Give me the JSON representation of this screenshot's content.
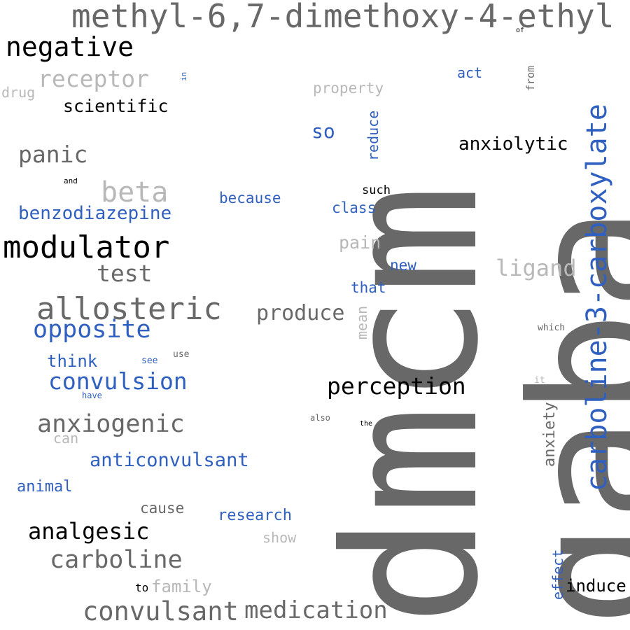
{
  "colors": {
    "dark_gray": "#686868",
    "black": "#000000",
    "light_gray": "#b8b8b8",
    "blue": "#3060bf",
    "background": "#ffffff"
  },
  "words": {
    "dmcm": "dmcm",
    "gaba": "gaba",
    "carboxylate": "carboline-3-carboxylate",
    "methyl": "methyl-6,7-dimethoxy-4-ethyl",
    "negative": "negative",
    "modulator": "modulator",
    "allosteric": "allosteric",
    "receptor": "receptor",
    "scientific": "scientific",
    "panic": "panic",
    "beta": "beta",
    "benzodiazepine": "benzodiazepine",
    "test": "test",
    "opposite": "opposite",
    "think": "think",
    "convulsion": "convulsion",
    "anxiogenic": "anxiogenic",
    "can": "can",
    "anticonvulsant": "anticonvulsant",
    "animal": "animal",
    "cause": "cause",
    "analgesic": "analgesic",
    "research": "research",
    "show": "show",
    "carboline": "carboline",
    "to": "to",
    "family": "family",
    "convulsant": "convulsant",
    "medication": "medication",
    "drug": "drug",
    "in": "in",
    "and": "and",
    "property": "property",
    "so": "so",
    "reduce": "reduce",
    "act": "act",
    "from": "from",
    "of": "of",
    "anxiolytic": "anxiolytic",
    "such": "such",
    "class": "class",
    "because": "because",
    "pain": "pain",
    "new": "new",
    "ligand": "ligand",
    "that": "that",
    "produce": "produce",
    "mean": "mean",
    "which": "which",
    "perception": "perception",
    "see": "see",
    "use": "use",
    "have": "have",
    "it": "it",
    "anxiety": "anxiety",
    "also": "also",
    "the": "the",
    "effect": "effect",
    "induce": "induce"
  }
}
